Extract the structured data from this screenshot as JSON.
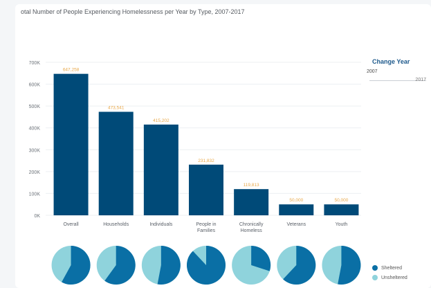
{
  "chart_title": "otal Number of People Experiencing Homelessness per Year by Type, 2007-2017",
  "controls": {
    "change_year_label": "Change Year",
    "slider_min": "2007",
    "slider_max": "2017"
  },
  "chart_data": {
    "type": "bar",
    "title": "otal Number of People Experiencing Homelessness per Year by Type, 2007-2017",
    "categories": [
      "Overall",
      "Households",
      "Individuals",
      "People in Families",
      "Chronically Homeless",
      "Veterans",
      "Youth"
    ],
    "values": [
      647258,
      473541,
      415202,
      231832,
      119813,
      50000,
      50000
    ],
    "value_labels": [
      "647,258",
      "473,541",
      "415,202",
      "231,832",
      "119,813",
      "50,000",
      "50,000"
    ],
    "y_ticks": [
      0,
      100000,
      200000,
      300000,
      400000,
      500000,
      600000,
      700000
    ],
    "y_tick_labels": [
      "0K",
      "100K",
      "200K",
      "300K",
      "400K",
      "500K",
      "600K",
      "700K"
    ],
    "ylim": [
      0,
      700000
    ],
    "grid": true,
    "bar_color": "#004a78",
    "label_color": "#e8a84a",
    "pies": {
      "series": [
        "Sheltered",
        "Unsheltered"
      ],
      "colors": [
        "#0a6fa5",
        "#8fd3dc"
      ],
      "sheltered_share": [
        0.58,
        0.6,
        0.53,
        0.88,
        0.3,
        0.62,
        0.53
      ]
    },
    "legend_position": "bottom-right"
  }
}
